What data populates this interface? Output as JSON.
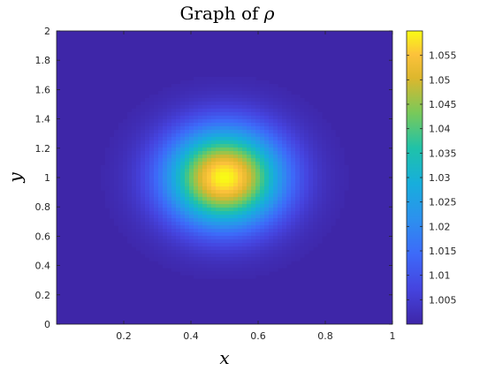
{
  "chart_data": {
    "type": "heatmap",
    "title_text": "Graph of ",
    "title_symbol": "ρ",
    "xlabel": "x",
    "ylabel": "y",
    "xlim": [
      0,
      1
    ],
    "ylim": [
      0,
      2
    ],
    "xticks": [
      0.2,
      0.4,
      0.6,
      0.8,
      1
    ],
    "xtick_labels": [
      "0.2",
      "0.4",
      "0.6",
      "0.8",
      "1"
    ],
    "yticks": [
      0,
      0.2,
      0.4,
      0.6,
      0.8,
      1,
      1.2,
      1.4,
      1.6,
      1.8,
      2
    ],
    "ytick_labels": [
      "0",
      "0.2",
      "0.4",
      "0.6",
      "0.8",
      "1",
      "1.2",
      "1.4",
      "1.6",
      "1.8",
      "2"
    ],
    "field": {
      "peak_center": [
        0.5,
        1.0
      ],
      "background_value": 1.0,
      "peak_value": 1.06,
      "gaussian_sigma_x": 0.12,
      "gaussian_sigma_y": 0.23
    },
    "colorbar": {
      "min": 1.0,
      "max": 1.06,
      "colormap": "parula",
      "ticks": [
        1.005,
        1.01,
        1.015,
        1.02,
        1.025,
        1.03,
        1.035,
        1.04,
        1.045,
        1.05,
        1.055
      ],
      "tick_labels": [
        "1.005",
        "1.01",
        "1.015",
        "1.02",
        "1.025",
        "1.03",
        "1.035",
        "1.04",
        "1.045",
        "1.05",
        "1.055"
      ]
    }
  }
}
